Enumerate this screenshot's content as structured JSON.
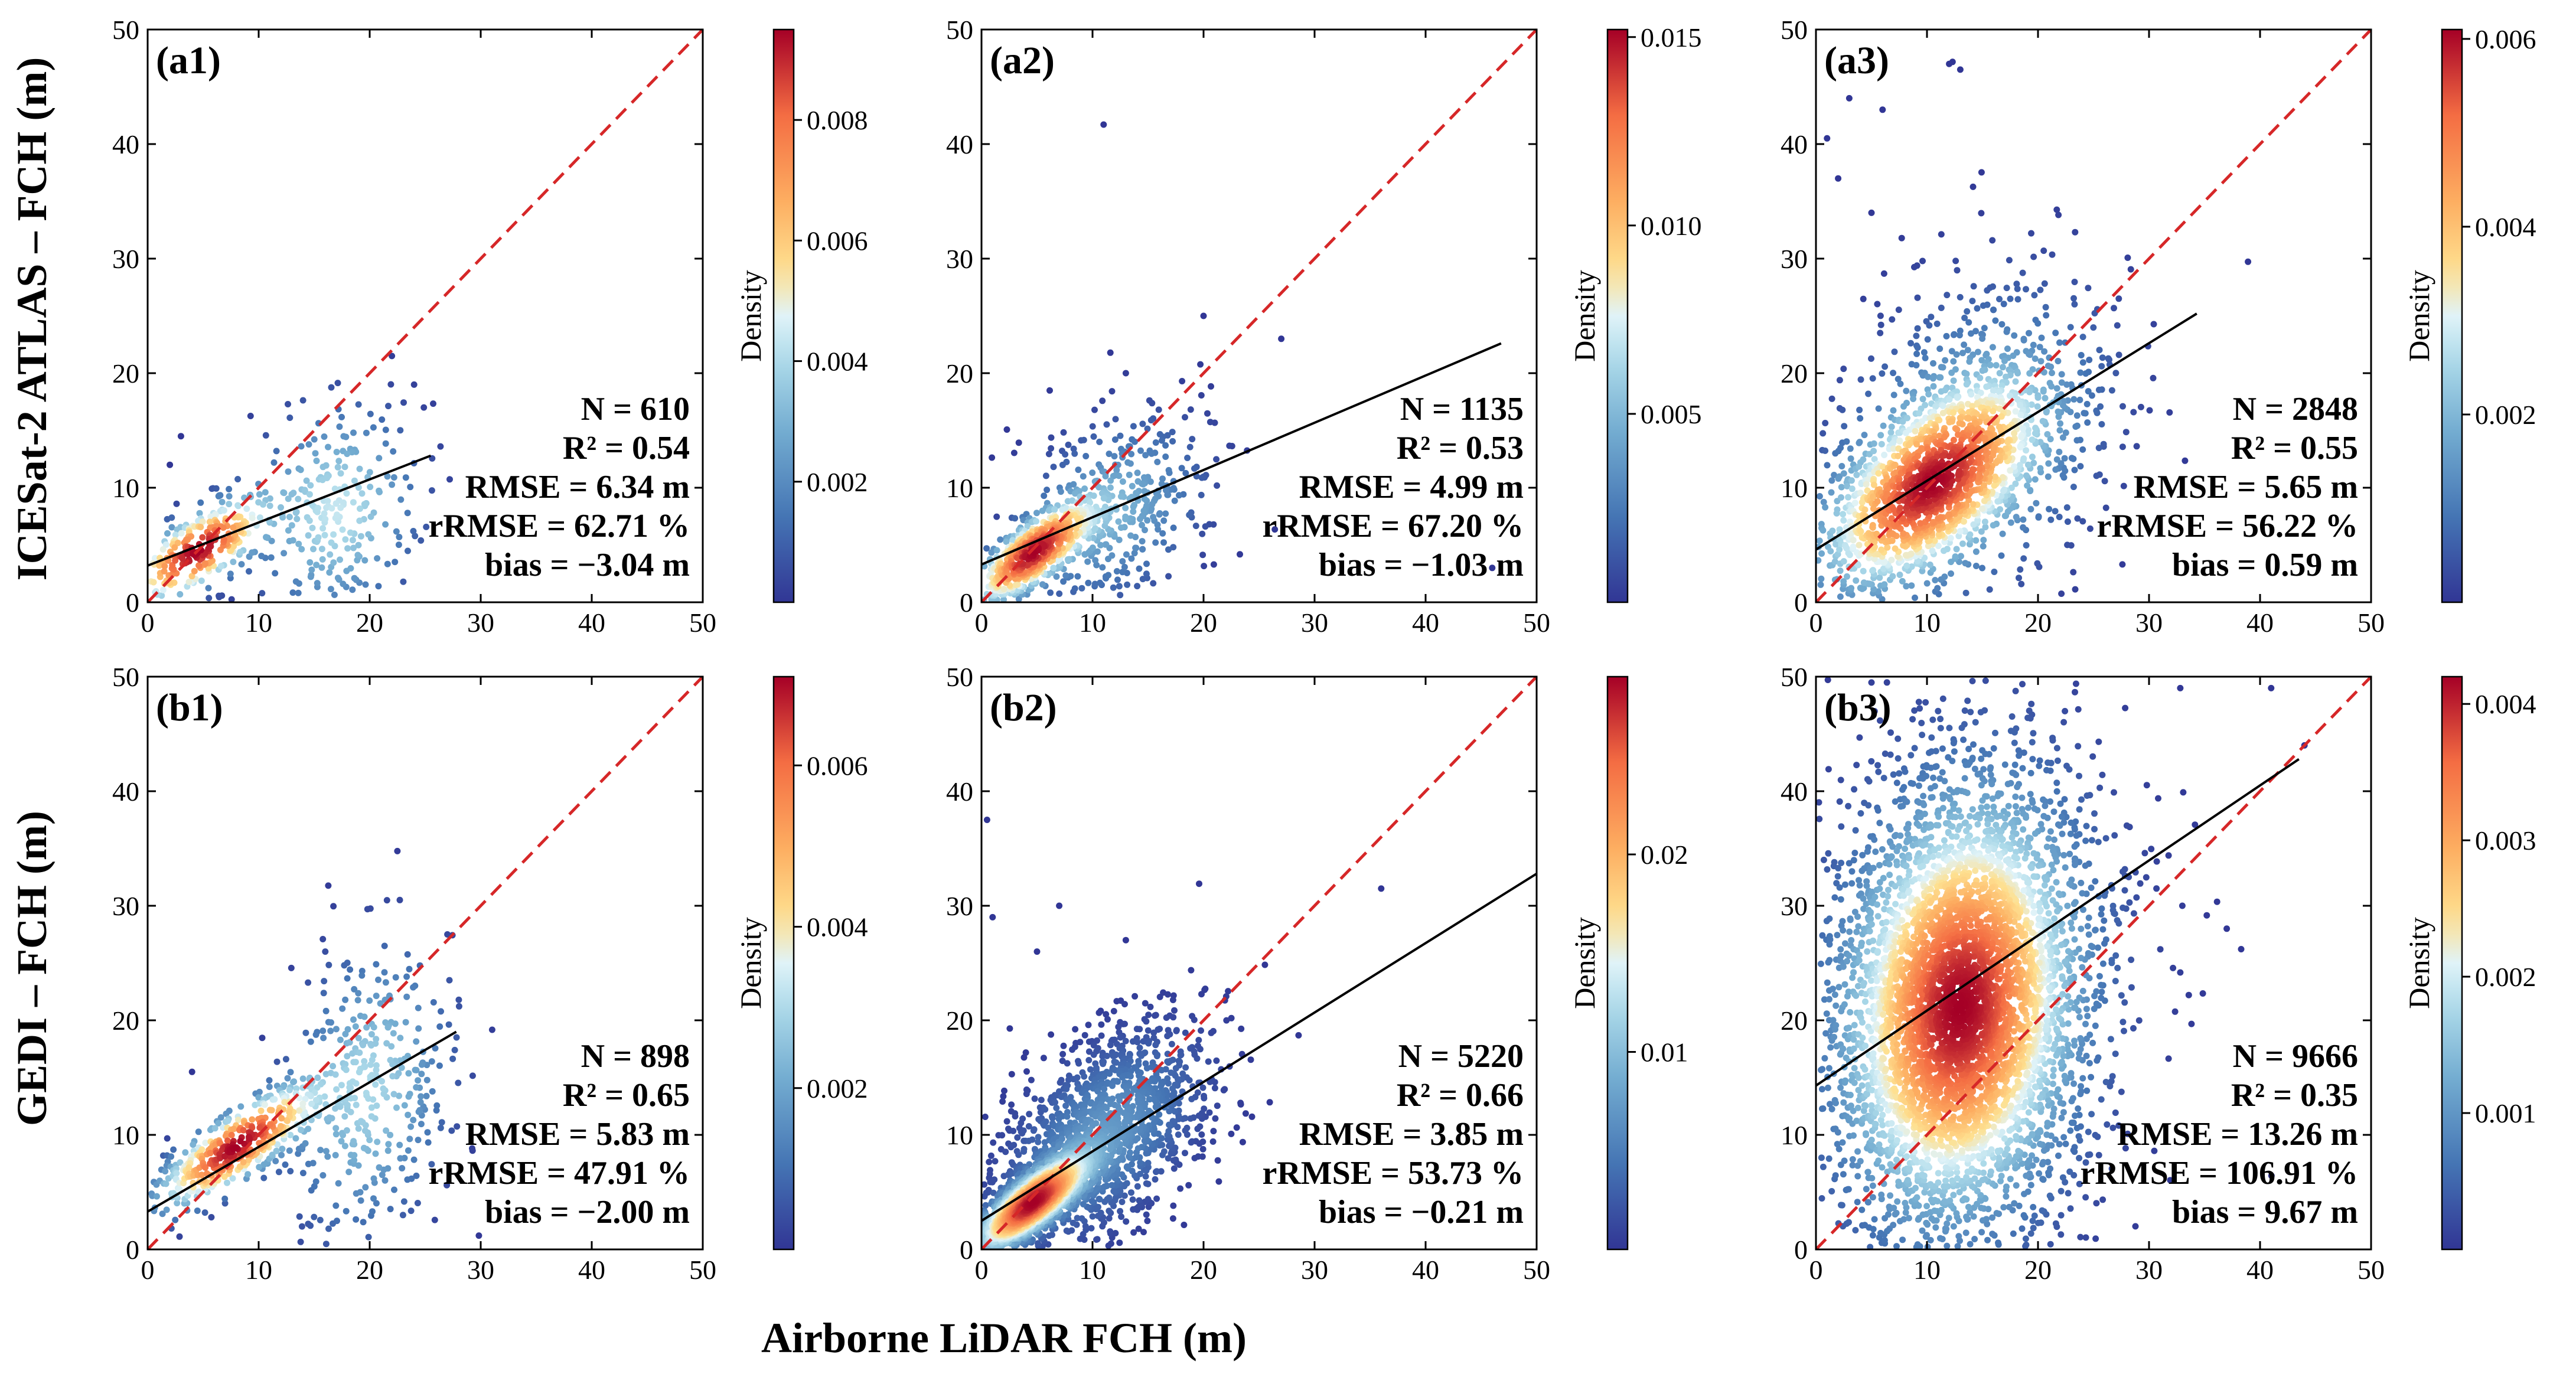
{
  "figure": {
    "xlabel": "Airborne LiDAR FCH (m)",
    "row_labels": [
      "ICESat-2 ATLAS – FCH (m)",
      "GEDI – FCH (m)"
    ],
    "axis_ticks": [
      "0",
      "10",
      "20",
      "30",
      "40",
      "50"
    ],
    "colorbar_label": "Density",
    "colors": {
      "identity_line": "#d62728",
      "fit_line": "#000000"
    }
  },
  "chart_data": [
    {
      "type": "scatter",
      "label": "(a1)",
      "xlim": [
        0,
        50
      ],
      "ylim": [
        0,
        50
      ],
      "fit": {
        "x0": 0,
        "y0": 3.2,
        "x1": 25.5,
        "y1": 12.8
      },
      "stats": [
        "N = 610",
        "R² = 0.54",
        "RMSE = 6.34 m",
        "rRMSE = 62.71 %",
        "bias = −3.04 m"
      ],
      "colorbar": {
        "label": "Density",
        "max": 0.0095,
        "ticks": [
          0.002,
          0.004,
          0.006,
          0.008
        ],
        "tick_labels": [
          "0.002",
          "0.004",
          "0.006",
          "0.008"
        ]
      },
      "clusters": [
        {
          "cx": 4.5,
          "cy": 4.5,
          "sx": 3.5,
          "sy": 2.6,
          "rho": 0.7,
          "n": 300
        },
        {
          "cx": 17,
          "cy": 8,
          "sx": 4,
          "sy": 5,
          "rho": 0.1,
          "n": 250
        }
      ],
      "outliers": [
        [
          3,
          14.5
        ],
        [
          2,
          12
        ],
        [
          22,
          21.5
        ],
        [
          24,
          19
        ]
      ]
    },
    {
      "type": "scatter",
      "label": "(a2)",
      "xlim": [
        0,
        50
      ],
      "ylim": [
        0,
        50
      ],
      "fit": {
        "x0": 0,
        "y0": 3.3,
        "x1": 46.8,
        "y1": 22.6
      },
      "stats": [
        "N = 1135",
        "R² = 0.53",
        "RMSE = 4.99 m",
        "rRMSE = 67.20 %",
        "bias = −1.03 m"
      ],
      "colorbar": {
        "label": "Density",
        "max": 0.0152,
        "ticks": [
          0.005,
          0.01,
          0.015
        ],
        "tick_labels": [
          "0.005",
          "0.010",
          "0.015"
        ]
      },
      "clusters": [
        {
          "cx": 4.5,
          "cy": 4.2,
          "sx": 3,
          "sy": 2.5,
          "rho": 0.75,
          "n": 600
        },
        {
          "cx": 12,
          "cy": 8,
          "sx": 4.5,
          "sy": 4.5,
          "rho": 0.3,
          "n": 400
        }
      ],
      "outliers": [
        [
          11,
          41.7
        ],
        [
          27,
          23
        ],
        [
          46,
          3
        ],
        [
          20,
          25
        ],
        [
          13,
          20
        ]
      ]
    },
    {
      "type": "scatter",
      "label": "(a3)",
      "xlim": [
        0,
        50
      ],
      "ylim": [
        0,
        50
      ],
      "fit": {
        "x0": 0,
        "y0": 4.6,
        "x1": 34.3,
        "y1": 25.2
      },
      "stats": [
        "N = 2848",
        "R² = 0.55",
        "RMSE = 5.65 m",
        "rRMSE = 56.22 %",
        "bias = 0.59 m"
      ],
      "colorbar": {
        "label": "Density",
        "max": 0.0061,
        "ticks": [
          0.002,
          0.004,
          0.006
        ],
        "tick_labels": [
          "0.002",
          "0.004",
          "0.006"
        ]
      },
      "clusters": [
        {
          "cx": 10,
          "cy": 10,
          "sx": 5.5,
          "sy": 5,
          "rho": 0.6,
          "n": 1300
        },
        {
          "cx": 14,
          "cy": 14,
          "sx": 7,
          "sy": 8,
          "rho": 0.3,
          "n": 700
        }
      ],
      "outliers": [
        [
          3,
          44
        ],
        [
          1,
          40.5
        ],
        [
          6,
          43
        ],
        [
          12,
          47
        ],
        [
          13,
          46.5
        ],
        [
          2,
          37
        ],
        [
          5,
          34
        ]
      ]
    },
    {
      "type": "scatter",
      "label": "(b1)",
      "xlim": [
        0,
        50
      ],
      "ylim": [
        0,
        50
      ],
      "fit": {
        "x0": 0,
        "y0": 3.3,
        "x1": 27.8,
        "y1": 19
      },
      "stats": [
        "N = 898",
        "R² = 0.65",
        "RMSE = 5.83 m",
        "rRMSE = 47.91 %",
        "bias = −2.00 m"
      ],
      "colorbar": {
        "label": "Density",
        "max": 0.0071,
        "ticks": [
          0.002,
          0.004,
          0.006
        ],
        "tick_labels": [
          "0.002",
          "0.004",
          "0.006"
        ]
      },
      "clusters": [
        {
          "cx": 8,
          "cy": 9,
          "sx": 4,
          "sy": 3,
          "rho": 0.8,
          "n": 450
        },
        {
          "cx": 20,
          "cy": 14,
          "sx": 4,
          "sy": 7,
          "rho": 0.2,
          "n": 350
        }
      ],
      "outliers": [
        [
          16,
          26
        ],
        [
          27,
          27.5
        ],
        [
          4,
          15.5
        ],
        [
          23,
          3
        ]
      ]
    },
    {
      "type": "scatter",
      "label": "(b2)",
      "xlim": [
        0,
        50
      ],
      "ylim": [
        0,
        50
      ],
      "fit": {
        "x0": 0,
        "y0": 2.5,
        "x1": 50,
        "y1": 32.8
      },
      "stats": [
        "N = 5220",
        "R² = 0.66",
        "RMSE = 3.85 m",
        "rRMSE = 53.73 %",
        "bias = −0.21 m"
      ],
      "colorbar": {
        "label": "Density",
        "max": 0.029,
        "ticks": [
          0.01,
          0.02
        ],
        "tick_labels": [
          "0.01",
          "0.02"
        ]
      },
      "clusters": [
        {
          "cx": 4.5,
          "cy": 4,
          "sx": 2.8,
          "sy": 2.3,
          "rho": 0.8,
          "n": 2200
        },
        {
          "cx": 11,
          "cy": 10,
          "sx": 5,
          "sy": 5,
          "rho": 0.5,
          "n": 1500
        }
      ],
      "outliers": [
        [
          0.5,
          37.5
        ],
        [
          36,
          31.5
        ],
        [
          1,
          29
        ],
        [
          7,
          30
        ],
        [
          5,
          26
        ],
        [
          13,
          27
        ]
      ]
    },
    {
      "type": "scatter",
      "label": "(b3)",
      "xlim": [
        0,
        50
      ],
      "ylim": [
        0,
        50
      ],
      "fit": {
        "x0": 0,
        "y0": 14.3,
        "x1": 43.5,
        "y1": 42.8
      },
      "stats": [
        "N = 9666",
        "R² = 0.35",
        "RMSE = 13.26 m",
        "rRMSE = 106.91 %",
        "bias = 9.67 m"
      ],
      "colorbar": {
        "label": "Density",
        "max": 0.0042,
        "ticks": [
          0.001,
          0.002,
          0.003,
          0.004
        ],
        "tick_labels": [
          "0.001",
          "0.002",
          "0.003",
          "0.004"
        ]
      },
      "clusters": [
        {
          "cx": 13,
          "cy": 21,
          "sx": 5.5,
          "sy": 9.5,
          "rho": 0.15,
          "n": 3500
        },
        {
          "cx": 13,
          "cy": 22,
          "sx": 7.5,
          "sy": 13,
          "rho": 0.1,
          "n": 1500
        }
      ],
      "outliers": [
        [
          41,
          49
        ],
        [
          37,
          28
        ],
        [
          33,
          30
        ],
        [
          28,
          37
        ],
        [
          44,
          44
        ]
      ]
    }
  ]
}
